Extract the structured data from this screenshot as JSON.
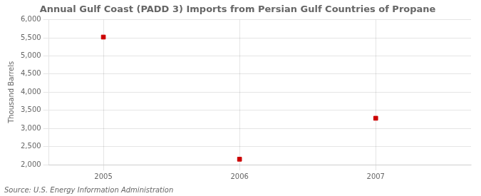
{
  "chart_data": {
    "type": "scatter",
    "title": "Annual Gulf Coast (PADD 3) Imports from Persian Gulf Countries of Propane",
    "y_label": "Thousand Barrels",
    "annotations": [
      "Source: U.S. Energy Information Administration"
    ],
    "x": [
      2005,
      2006,
      2007
    ],
    "values": [
      5520,
      2150,
      3280
    ],
    "color": "#cc0000",
    "marker": "square",
    "xlim": [
      2004.6,
      2007.7
    ],
    "xticks": [
      2005,
      2006,
      2007
    ],
    "ylim": [
      2000,
      6000
    ],
    "yticks": [
      {
        "value": 2000,
        "label": "2,000"
      },
      {
        "value": 2500,
        "label": "2,500"
      },
      {
        "value": 3000,
        "label": "3,000"
      },
      {
        "value": 3500,
        "label": "3,500"
      },
      {
        "value": 4000,
        "label": "4,000"
      },
      {
        "value": 4500,
        "label": "4,500"
      },
      {
        "value": 5000,
        "label": "5,000"
      },
      {
        "value": 5500,
        "label": "5,500"
      },
      {
        "value": 6000,
        "label": "6,000"
      }
    ],
    "grid": true
  }
}
